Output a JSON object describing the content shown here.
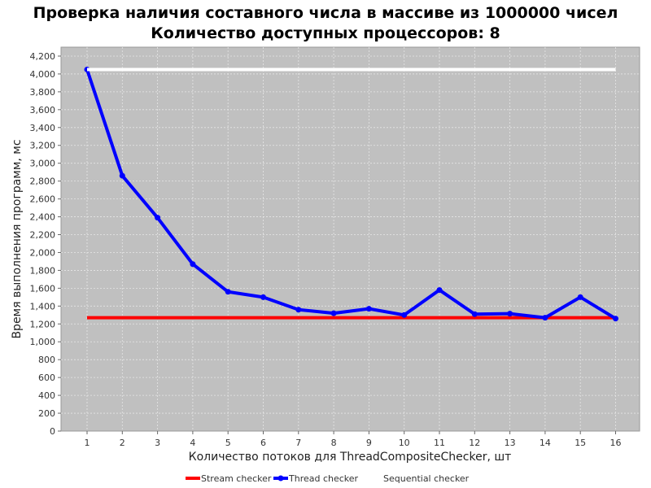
{
  "chart_data": {
    "type": "line",
    "title": "Проверка наличия составного числа в массиве из 1000000 чисел",
    "subtitle": "Количество доступных процессоров: 8",
    "xlabel": "Количество потоков для ThreadCompositeChecker, шт",
    "ylabel": "Время выполнения программ, мс",
    "categories": [
      "1",
      "2",
      "3",
      "4",
      "5",
      "6",
      "7",
      "8",
      "9",
      "10",
      "11",
      "12",
      "13",
      "14",
      "15",
      "16"
    ],
    "ylim": [
      0,
      4300
    ],
    "yticks": [
      0,
      200,
      400,
      600,
      800,
      1000,
      1200,
      1400,
      1600,
      1800,
      2000,
      2200,
      2400,
      2600,
      2800,
      3000,
      3200,
      3400,
      3600,
      3800,
      4000,
      4200
    ],
    "ytick_labels": [
      "0",
      "200",
      "400",
      "600",
      "800",
      "1,000",
      "1,200",
      "1,400",
      "1,600",
      "1,800",
      "2,000",
      "2,200",
      "2,400",
      "2,600",
      "2,800",
      "3,000",
      "3,200",
      "3,400",
      "3,600",
      "3,800",
      "4,000",
      "4,200"
    ],
    "grid": true,
    "legend": "bottom",
    "series": [
      {
        "name": "Stream checker",
        "color": "#ff0000",
        "markers": false,
        "values": [
          1270,
          1270,
          1270,
          1270,
          1270,
          1270,
          1270,
          1270,
          1270,
          1270,
          1270,
          1270,
          1270,
          1270,
          1270,
          1270
        ]
      },
      {
        "name": "Thread checker",
        "color": "#0000ff",
        "markers": true,
        "values": [
          4050,
          2860,
          2390,
          1870,
          1560,
          1500,
          1360,
          1320,
          1370,
          1300,
          1580,
          1310,
          1315,
          1270,
          1500,
          1260
        ]
      },
      {
        "name": "Sequential checker",
        "color": "#ffffff",
        "markers": false,
        "values": [
          4050,
          4050,
          4050,
          4050,
          4050,
          4050,
          4050,
          4050,
          4050,
          4050,
          4050,
          4050,
          4050,
          4050,
          4050,
          4050
        ]
      }
    ],
    "colors": {
      "plot_background": "#c0c0c0",
      "grid": "#e6e6e6"
    }
  }
}
